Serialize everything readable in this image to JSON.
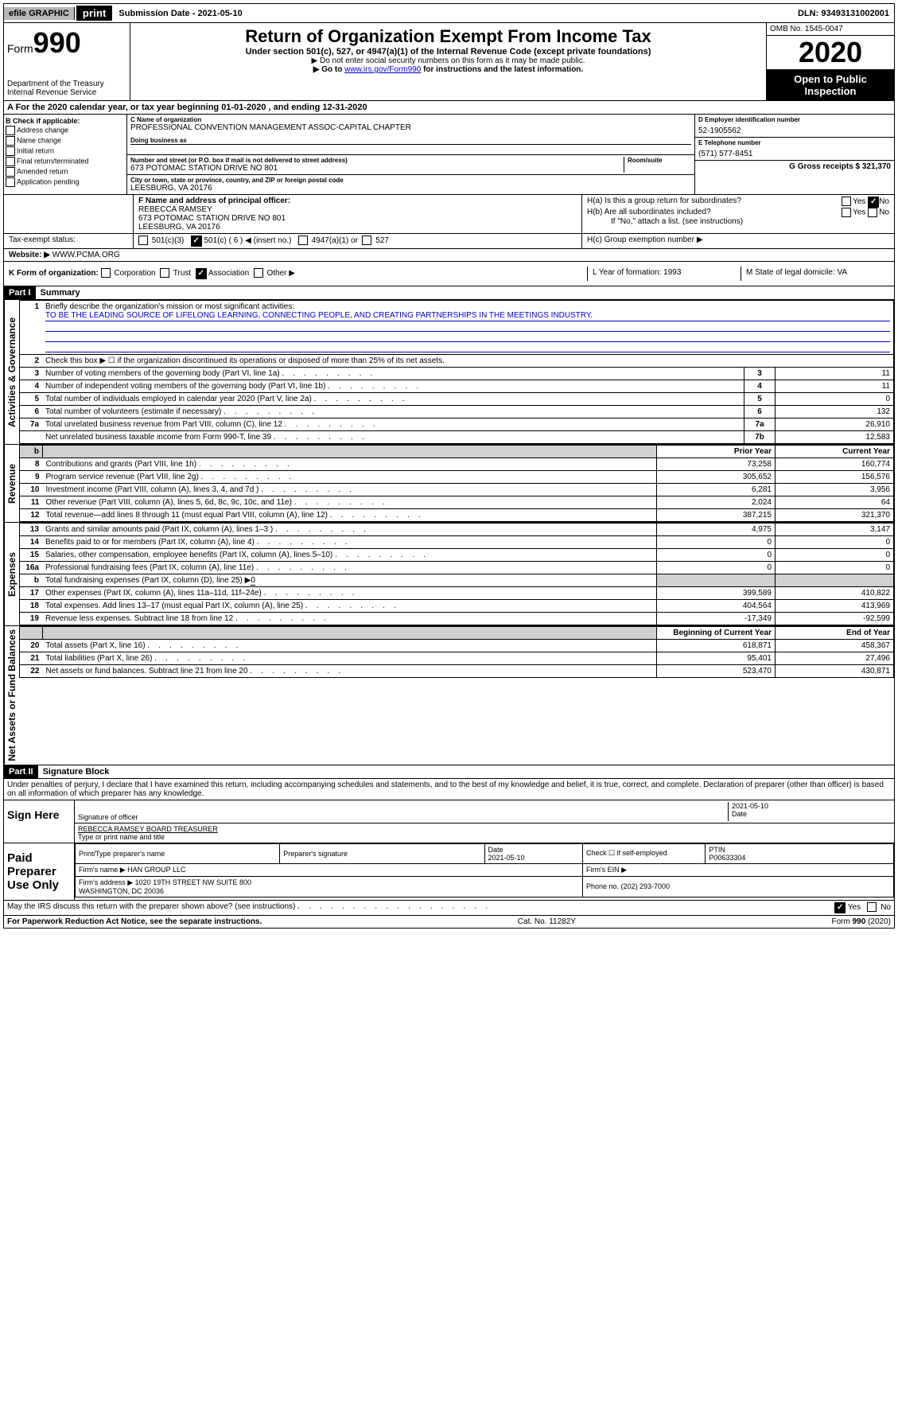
{
  "topbar": {
    "efile": "efile GRAPHIC",
    "print": "print",
    "submission": "Submission Date - 2021-05-10",
    "dln": "DLN: 93493131002001"
  },
  "header": {
    "form_prefix": "Form",
    "form_no": "990",
    "title": "Return of Organization Exempt From Income Tax",
    "sub1": "Under section 501(c), 527, or 4947(a)(1) of the Internal Revenue Code (except private foundations)",
    "sub2": "▶ Do not enter social security numbers on this form as it may be made public.",
    "sub3_pre": "▶ Go to ",
    "sub3_link": "www.irs.gov/Form990",
    "sub3_post": " for instructions and the latest information.",
    "dept": "Department of the Treasury\nInternal Revenue Service",
    "omb": "OMB No. 1545-0047",
    "year": "2020",
    "open": "Open to Public Inspection"
  },
  "period": "A For the 2020 calendar year, or tax year beginning 01-01-2020    , and ending 12-31-2020",
  "check": {
    "label": "B Check if applicable:",
    "items": [
      "Address change",
      "Name change",
      "Initial return",
      "Final return/terminated",
      "Amended return",
      "Application pending"
    ]
  },
  "orgC": {
    "name_label": "C Name of organization",
    "name": "PROFESSIONAL CONVENTION MANAGEMENT ASSOC-CAPITAL CHAPTER",
    "dba_label": "Doing business as",
    "addr_label": "Number and street (or P.O. box if mail is not delivered to street address)",
    "room_label": "Room/suite",
    "addr": "673 POTOMAC STATION DRIVE NO 801",
    "city_label": "City or town, state or province, country, and ZIP or foreign postal code",
    "city": "LEESBURG, VA  20176"
  },
  "orgDE": {
    "d_label": "D Employer identification number",
    "d_val": "52-1905562",
    "e_label": "E Telephone number",
    "e_val": "(571) 577-8451",
    "g_label": "G Gross receipts $ 321,370"
  },
  "officerF": {
    "label": "F  Name and address of principal officer:",
    "name": "REBECCA RAMSEY",
    "addr1": "673 POTOMAC STATION DRIVE NO 801",
    "addr2": "LEESBURG, VA  20176"
  },
  "groupH": {
    "ha": "H(a)  Is this a group return for subordinates?",
    "hb": "H(b)  Are all subordinates included?",
    "hb_note": "If \"No,\" attach a list. (see instructions)",
    "hc": "H(c)  Group exemption number ▶",
    "yes": "Yes",
    "no": "No"
  },
  "taxI": {
    "label": "Tax-exempt status:",
    "c3": "501(c)(3)",
    "c": "501(c) ( 6 ) ◀ (insert no.)",
    "a4947": "4947(a)(1) or",
    "s527": "527"
  },
  "websiteJ": {
    "label": "Website: ▶",
    "val": "WWW.PCMA.ORG"
  },
  "rowK": {
    "label": "K Form of organization:",
    "opts": [
      "Corporation",
      "Trust",
      "Association",
      "Other ▶"
    ],
    "l_label": "L Year of formation: 1993",
    "m_label": "M State of legal domicile: VA"
  },
  "partI": {
    "header": "Part I",
    "title": "Summary",
    "vert_ag": "Activities & Governance",
    "vert_rev": "Revenue",
    "vert_exp": "Expenses",
    "vert_net": "Net Assets or Fund Balances",
    "q1": "Briefly describe the organization's mission or most significant activities:",
    "mission": "TO BE THE LEADING SOURCE OF LIFELONG LEARNING, CONNECTING PEOPLE, AND CREATING PARTNERSHIPS IN THE MEETINGS INDUSTRY.",
    "q2": "Check this box ▶ ☐  if the organization discontinued its operations or disposed of more than 25% of its net assets.",
    "rows_gov": [
      {
        "n": "3",
        "d": "Number of voting members of the governing body (Part VI, line 1a)",
        "box": "3",
        "v": "11"
      },
      {
        "n": "4",
        "d": "Number of independent voting members of the governing body (Part VI, line 1b)",
        "box": "4",
        "v": "11"
      },
      {
        "n": "5",
        "d": "Total number of individuals employed in calendar year 2020 (Part V, line 2a)",
        "box": "5",
        "v": "0"
      },
      {
        "n": "6",
        "d": "Total number of volunteers (estimate if necessary)",
        "box": "6",
        "v": "132"
      },
      {
        "n": "7a",
        "d": "Total unrelated business revenue from Part VIII, column (C), line 12",
        "box": "7a",
        "v": "26,910"
      },
      {
        "n": "",
        "d": "Net unrelated business taxable income from Form 990-T, line 39",
        "box": "7b",
        "v": "12,583"
      }
    ],
    "col_prior": "Prior Year",
    "col_current": "Current Year",
    "rows_rev": [
      {
        "n": "8",
        "d": "Contributions and grants (Part VIII, line 1h)",
        "p": "73,258",
        "c": "160,774"
      },
      {
        "n": "9",
        "d": "Program service revenue (Part VIII, line 2g)",
        "p": "305,652",
        "c": "156,576"
      },
      {
        "n": "10",
        "d": "Investment income (Part VIII, column (A), lines 3, 4, and 7d )",
        "p": "6,281",
        "c": "3,956"
      },
      {
        "n": "11",
        "d": "Other revenue (Part VIII, column (A), lines 5, 6d, 8c, 9c, 10c, and 11e)",
        "p": "2,024",
        "c": "64"
      },
      {
        "n": "12",
        "d": "Total revenue—add lines 8 through 11 (must equal Part VIII, column (A), line 12)",
        "p": "387,215",
        "c": "321,370"
      }
    ],
    "rows_exp": [
      {
        "n": "13",
        "d": "Grants and similar amounts paid (Part IX, column (A), lines 1–3 )",
        "p": "4,975",
        "c": "3,147"
      },
      {
        "n": "14",
        "d": "Benefits paid to or for members (Part IX, column (A), line 4)",
        "p": "0",
        "c": "0"
      },
      {
        "n": "15",
        "d": "Salaries, other compensation, employee benefits (Part IX, column (A), lines 5–10)",
        "p": "0",
        "c": "0"
      },
      {
        "n": "16a",
        "d": "Professional fundraising fees (Part IX, column (A), line 11e)",
        "p": "0",
        "c": "0"
      }
    ],
    "row_16b_d": "Total fundraising expenses (Part IX, column (D), line 25) ▶",
    "row_16b_v": "0",
    "rows_exp2": [
      {
        "n": "17",
        "d": "Other expenses (Part IX, column (A), lines 11a–11d, 11f–24e)",
        "p": "399,589",
        "c": "410,822"
      },
      {
        "n": "18",
        "d": "Total expenses. Add lines 13–17 (must equal Part IX, column (A), line 25)",
        "p": "404,564",
        "c": "413,969"
      },
      {
        "n": "19",
        "d": "Revenue less expenses. Subtract line 18 from line 12",
        "p": "-17,349",
        "c": "-92,599"
      }
    ],
    "col_begin": "Beginning of Current Year",
    "col_end": "End of Year",
    "rows_net": [
      {
        "n": "20",
        "d": "Total assets (Part X, line 16)",
        "p": "618,871",
        "c": "458,367"
      },
      {
        "n": "21",
        "d": "Total liabilities (Part X, line 26)",
        "p": "95,401",
        "c": "27,496"
      },
      {
        "n": "22",
        "d": "Net assets or fund balances. Subtract line 21 from line 20",
        "p": "523,470",
        "c": "430,871"
      }
    ]
  },
  "partII": {
    "header": "Part II",
    "title": "Signature Block",
    "perjury": "Under penalties of perjury, I declare that I have examined this return, including accompanying schedules and statements, and to the best of my knowledge and belief, it is true, correct, and complete. Declaration of preparer (other than officer) is based on all information of which preparer has any knowledge.",
    "sign_here": "Sign Here",
    "sig_officer": "Signature of officer",
    "date": "2021-05-10",
    "date_label": "Date",
    "officer_name": "REBECCA RAMSEY BOARD TREASURER",
    "type_name": "Type or print name and title",
    "paid": "Paid Preparer Use Only",
    "prep_name_label": "Print/Type preparer's name",
    "prep_sig_label": "Preparer's signature",
    "prep_date_label": "Date",
    "prep_date": "2021-05-10",
    "check_self": "Check ☐ if self-employed",
    "ptin_label": "PTIN",
    "ptin": "P00633304",
    "firm_name_label": "Firm's name    ▶",
    "firm_name": "HAN GROUP LLC",
    "firm_ein_label": "Firm's EIN ▶",
    "firm_addr_label": "Firm's address ▶",
    "firm_addr": "1020 19TH STREET NW SUITE 800\nWASHINGTON, DC  20036",
    "phone_label": "Phone no. (202) 293-7000",
    "discuss": "May the IRS discuss this return with the preparer shown above? (see instructions)",
    "yes": "Yes",
    "no": "No"
  },
  "footer": {
    "pra": "For Paperwork Reduction Act Notice, see the separate instructions.",
    "cat": "Cat. No. 11282Y",
    "form": "Form 990 (2020)"
  }
}
